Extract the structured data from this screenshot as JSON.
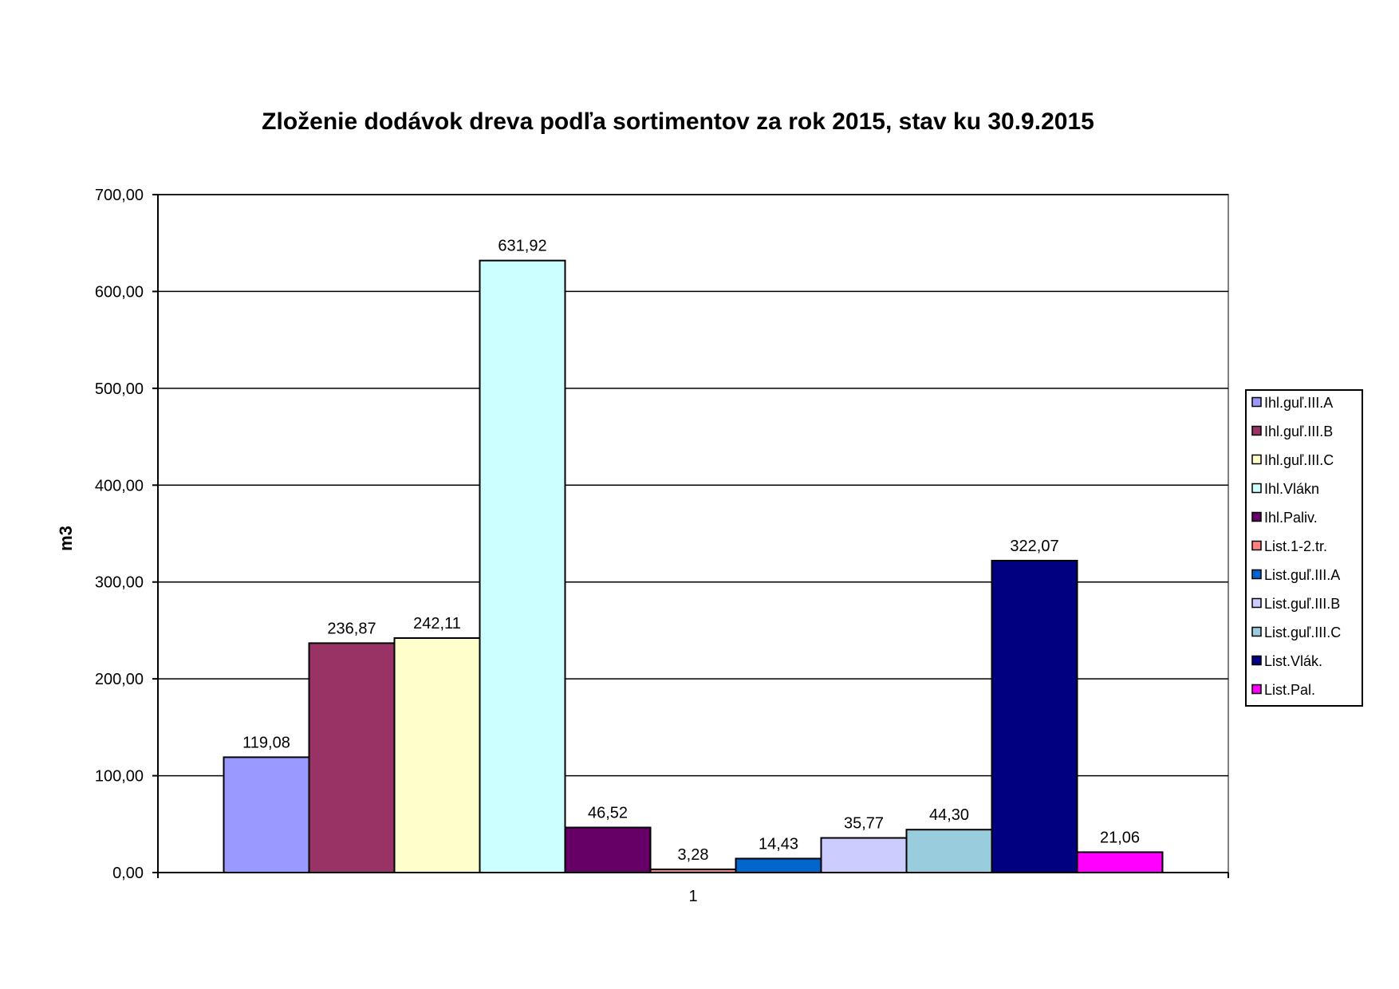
{
  "chart_data": {
    "type": "bar",
    "title": "Zloženie dodávok dreva podľa sortimentov za rok 2015, stav ku 30.9.2015",
    "xlabel": "",
    "ylabel": "m3",
    "categories": [
      "1"
    ],
    "ylim": [
      0,
      700
    ],
    "ytick_step": 100,
    "ytick_labels": [
      "0,00",
      "100,00",
      "200,00",
      "300,00",
      "400,00",
      "500,00",
      "600,00",
      "700,00"
    ],
    "grid": true,
    "legend_position": "right",
    "series": [
      {
        "name": "Ihl.guľ.III.A",
        "values": [
          119.08
        ],
        "label": "119,08",
        "color": "#9999ff"
      },
      {
        "name": "Ihl.guľ.III.B",
        "values": [
          236.87
        ],
        "label": "236,87",
        "color": "#993366"
      },
      {
        "name": "Ihl.guľ.III.C",
        "values": [
          242.11
        ],
        "label": "242,11",
        "color": "#ffffcc"
      },
      {
        "name": "Ihl.Vlákn",
        "values": [
          631.92
        ],
        "label": "631,92",
        "color": "#ccffff"
      },
      {
        "name": "Ihl.Paliv.",
        "values": [
          46.52
        ],
        "label": "46,52",
        "color": "#660066"
      },
      {
        "name": "List.1-2.tr.",
        "values": [
          3.28
        ],
        "label": "3,28",
        "color": "#ff8080"
      },
      {
        "name": "List.guľ.III.A",
        "values": [
          14.43
        ],
        "label": "14,43",
        "color": "#0066cc"
      },
      {
        "name": "List.guľ.III.B",
        "values": [
          35.77
        ],
        "label": "35,77",
        "color": "#ccccff"
      },
      {
        "name": "List.guľ.III.C",
        "values": [
          44.3
        ],
        "label": "44,30",
        "color": "#99ccdd"
      },
      {
        "name": "List.Vlák.",
        "values": [
          322.07
        ],
        "label": "322,07",
        "color": "#000080"
      },
      {
        "name": "List.Pal.",
        "values": [
          21.06
        ],
        "label": "21,06",
        "color": "#ff00ff"
      }
    ]
  }
}
